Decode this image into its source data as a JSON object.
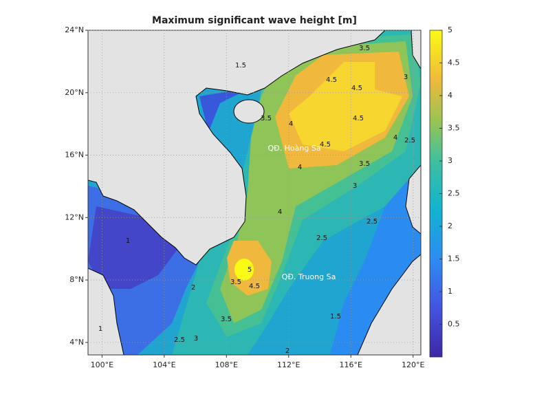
{
  "map": {
    "title": "Maximum significant wave height [m]",
    "lonlim": [
      99.1,
      120.5
    ],
    "latlim": [
      3.2,
      24
    ],
    "lon_ticks": [
      {
        "value": 100,
        "label": "100°E"
      },
      {
        "value": 104,
        "label": "104°E"
      },
      {
        "value": 108,
        "label": "108°E"
      },
      {
        "value": 112,
        "label": "112°E"
      },
      {
        "value": 116,
        "label": "116°E"
      },
      {
        "value": 120,
        "label": "120°E"
      }
    ],
    "lat_ticks": [
      {
        "value": 4,
        "label": "4°N"
      },
      {
        "value": 8,
        "label": "8°N"
      },
      {
        "value": 12,
        "label": "12°N"
      },
      {
        "value": 16,
        "label": "16°N"
      },
      {
        "value": 20,
        "label": "20°N"
      },
      {
        "value": 24,
        "label": "24°N"
      }
    ],
    "grid": true,
    "colorbar": {
      "lim": [
        0,
        5
      ],
      "ticks": [
        0.5,
        1,
        1.5,
        2,
        2.5,
        3,
        3.5,
        4,
        4.5,
        5
      ]
    },
    "place_labels": [
      "QĐ. Hoàng Sa",
      "QĐ. Truong Sa"
    ],
    "contour_labels": [
      5,
      4.5,
      4.5,
      4.5,
      4.5,
      4.5,
      4,
      4,
      4,
      4,
      3.5,
      3.5,
      3.5,
      3.5,
      3.5,
      3,
      3,
      3,
      2.5,
      2.5,
      2.5,
      2.5,
      2,
      2,
      1.5,
      1.5,
      1,
      1
    ]
  }
}
